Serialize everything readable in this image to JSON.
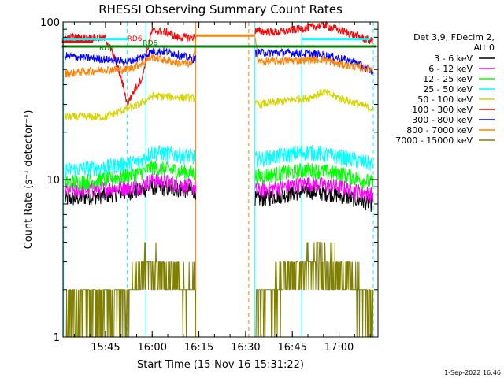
{
  "chart_data": {
    "type": "line",
    "title": "RHESSI Observing Summary Count Rates",
    "xlabel": "Start Time (15-Nov-16 15:31:22)",
    "ylabel": "Count Rate (s⁻¹ detector⁻¹)",
    "ylog": true,
    "ylim": [
      1,
      100
    ],
    "xlim": [
      "15:31:22",
      "17:12:30"
    ],
    "x_ticks": [
      "15:45",
      "16:00",
      "16:15",
      "16:30",
      "16:45",
      "17:00"
    ],
    "y_tick_labels": [
      "1",
      "10",
      "100"
    ],
    "legend_header": [
      "Det 3,9, FDecim 2,",
      "Att 0"
    ],
    "legend_position": "right",
    "footer_date": "1-Sep-2022 16:46",
    "annotations": [
      "RD6",
      "RD6",
      "RD6"
    ],
    "data_gap": [
      "16:14",
      "16:33"
    ],
    "series": [
      {
        "name": "3 - 6 keV",
        "color": "#000000",
        "values": [
          {
            "t": "15:32",
            "y": 7.5
          },
          {
            "t": "15:45",
            "y": 8.0
          },
          {
            "t": "15:56",
            "y": 8.5
          },
          {
            "t": "16:00",
            "y": 9.0
          },
          {
            "t": "16:13",
            "y": 8.5
          },
          {
            "t": "16:34",
            "y": 7.5
          },
          {
            "t": "16:50",
            "y": 8.5
          },
          {
            "t": "17:00",
            "y": 8.0
          },
          {
            "t": "17:11",
            "y": 7.0
          }
        ]
      },
      {
        "name": "6 - 12 keV",
        "color": "#ff00ff",
        "values": [
          {
            "t": "15:32",
            "y": 8.5
          },
          {
            "t": "15:45",
            "y": 8.8
          },
          {
            "t": "15:56",
            "y": 9.0
          },
          {
            "t": "16:00",
            "y": 10.0
          },
          {
            "t": "16:13",
            "y": 9.0
          },
          {
            "t": "16:34",
            "y": 8.5
          },
          {
            "t": "16:50",
            "y": 9.5
          },
          {
            "t": "17:00",
            "y": 9.0
          },
          {
            "t": "17:11",
            "y": 8.0
          }
        ]
      },
      {
        "name": "12 - 25 keV",
        "color": "#00ff00",
        "values": [
          {
            "t": "15:32",
            "y": 9.5
          },
          {
            "t": "15:45",
            "y": 10.0
          },
          {
            "t": "15:56",
            "y": 11.0
          },
          {
            "t": "16:00",
            "y": 12.0
          },
          {
            "t": "16:13",
            "y": 11.0
          },
          {
            "t": "16:34",
            "y": 10.5
          },
          {
            "t": "16:50",
            "y": 11.5
          },
          {
            "t": "17:00",
            "y": 11.0
          },
          {
            "t": "17:11",
            "y": 9.5
          }
        ]
      },
      {
        "name": "25 - 50 keV",
        "color": "#00ffff",
        "values": [
          {
            "t": "15:32",
            "y": 11.5
          },
          {
            "t": "15:45",
            "y": 12.0
          },
          {
            "t": "15:56",
            "y": 13.0
          },
          {
            "t": "16:00",
            "y": 15.0
          },
          {
            "t": "16:13",
            "y": 14.0
          },
          {
            "t": "16:34",
            "y": 13.5
          },
          {
            "t": "16:50",
            "y": 15.0
          },
          {
            "t": "17:00",
            "y": 14.0
          },
          {
            "t": "17:11",
            "y": 12.5
          }
        ]
      },
      {
        "name": "50 - 100 keV",
        "color": "#d4d400",
        "values": [
          {
            "t": "15:32",
            "y": 25
          },
          {
            "t": "15:45",
            "y": 25
          },
          {
            "t": "15:56",
            "y": 30
          },
          {
            "t": "16:00",
            "y": 34
          },
          {
            "t": "16:13",
            "y": 33
          },
          {
            "t": "16:34",
            "y": 30
          },
          {
            "t": "16:50",
            "y": 33
          },
          {
            "t": "16:55",
            "y": 36
          },
          {
            "t": "17:00",
            "y": 33
          },
          {
            "t": "17:11",
            "y": 28
          }
        ]
      },
      {
        "name": "100 - 300 keV",
        "color": "#ff0000",
        "values": [
          {
            "t": "15:32",
            "y": 80
          },
          {
            "t": "15:45",
            "y": 79
          },
          {
            "t": "15:52",
            "y": 30
          },
          {
            "t": "15:57",
            "y": 45
          },
          {
            "t": "16:00",
            "y": 88
          },
          {
            "t": "16:05",
            "y": 86
          },
          {
            "t": "16:08",
            "y": 80
          },
          {
            "t": "16:13",
            "y": 80
          },
          {
            "t": "16:33",
            "y": 88
          },
          {
            "t": "16:40",
            "y": 86
          },
          {
            "t": "16:50",
            "y": 92
          },
          {
            "t": "16:55",
            "y": 96
          },
          {
            "t": "17:00",
            "y": 89
          },
          {
            "t": "17:11",
            "y": 75
          }
        ]
      },
      {
        "name": "300 - 800 keV",
        "color": "#0000ff",
        "values": [
          {
            "t": "15:32",
            "y": 61
          },
          {
            "t": "15:45",
            "y": 58
          },
          {
            "t": "15:52",
            "y": 56
          },
          {
            "t": "15:57",
            "y": 60
          },
          {
            "t": "16:00",
            "y": 65
          },
          {
            "t": "16:05",
            "y": 65
          },
          {
            "t": "16:13",
            "y": 58
          },
          {
            "t": "16:34",
            "y": 64
          },
          {
            "t": "16:45",
            "y": 64
          },
          {
            "t": "16:55",
            "y": 62
          },
          {
            "t": "17:05",
            "y": 56
          },
          {
            "t": "17:11",
            "y": 48
          }
        ]
      },
      {
        "name": "800 - 7000 keV",
        "color": "#ff8000",
        "values": [
          {
            "t": "15:32",
            "y": 47
          },
          {
            "t": "15:45",
            "y": 50
          },
          {
            "t": "15:52",
            "y": 50
          },
          {
            "t": "15:57",
            "y": 55
          },
          {
            "t": "16:00",
            "y": 60
          },
          {
            "t": "16:08",
            "y": 55
          },
          {
            "t": "16:13",
            "y": 54
          },
          {
            "t": "16:14",
            "y": 82
          },
          {
            "t": "16:33",
            "y": 82
          },
          {
            "t": "16:34",
            "y": 56
          },
          {
            "t": "16:45",
            "y": 57
          },
          {
            "t": "16:55",
            "y": 58
          },
          {
            "t": "17:00",
            "y": 54
          },
          {
            "t": "17:11",
            "y": 50
          }
        ]
      },
      {
        "name": "7000 - 15000 keV",
        "color": "#808000",
        "values": [
          {
            "t": "15:32",
            "y": 1.5
          },
          {
            "t": "15:45",
            "y": 1.5
          },
          {
            "t": "15:52",
            "y": 1.8
          },
          {
            "t": "15:58",
            "y": 2.8
          },
          {
            "t": "16:05",
            "y": 2.5
          },
          {
            "t": "16:13",
            "y": 2.0
          },
          {
            "t": "16:34",
            "y": 1.6
          },
          {
            "t": "16:45",
            "y": 2.5
          },
          {
            "t": "16:55",
            "y": 3.0
          },
          {
            "t": "17:05",
            "y": 2.0
          },
          {
            "t": "17:11",
            "y": 1.6
          }
        ]
      }
    ],
    "flag_bars": [
      {
        "label": "RD6",
        "color": "#008000",
        "level": 70,
        "from": "15:31",
        "to": "17:12"
      },
      {
        "label": "RD6",
        "color": "#ff0000",
        "level": 75,
        "from": "15:31",
        "to": "15:41"
      },
      {
        "label": "RD6",
        "color": "#00ffff",
        "level": 78,
        "from": "15:31",
        "to": "15:52"
      },
      {
        "label": "",
        "color": "#00ffff",
        "level": 78,
        "from": "16:48",
        "to": "17:10"
      }
    ],
    "vertical_lines": [
      {
        "t": "15:31:30",
        "color": "#00ffff",
        "style": "solid"
      },
      {
        "t": "15:52",
        "color": "#00ffff",
        "style": "dashed"
      },
      {
        "t": "15:58",
        "color": "#00ffff",
        "style": "solid"
      },
      {
        "t": "16:14",
        "color": "#ff8000",
        "style": "solid"
      },
      {
        "t": "16:31",
        "color": "#ff8000",
        "style": "dashed"
      },
      {
        "t": "16:33",
        "color": "#00ffff",
        "style": "solid"
      },
      {
        "t": "16:48",
        "color": "#00ffff",
        "style": "solid"
      },
      {
        "t": "17:11",
        "color": "#00ffff",
        "style": "dashed"
      }
    ]
  }
}
